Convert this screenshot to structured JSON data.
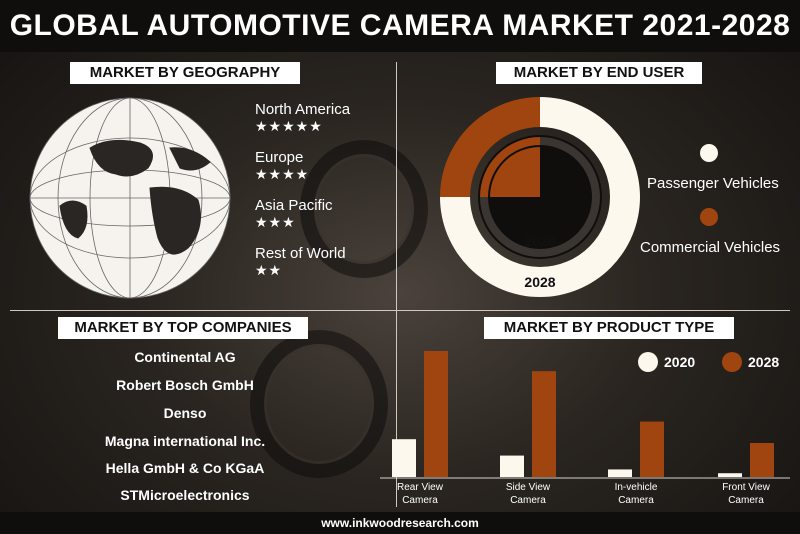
{
  "title": "GLOBAL AUTOMOTIVE CAMERA MARKET 2021-2028",
  "footer": "www.inkwoodresearch.com",
  "colors": {
    "accent": "#a0450f",
    "light": "#fcf8ed",
    "dark": "#100e0d"
  },
  "geography": {
    "heading": "MARKET BY GEOGRAPHY",
    "icon": "globe-icon",
    "regions": [
      {
        "name": "North America",
        "stars": "★★★★★",
        "rating": 5
      },
      {
        "name": "Europe",
        "stars": "★★★★",
        "rating": 4
      },
      {
        "name": "Asia Pacific",
        "stars": "★★★",
        "rating": 3
      },
      {
        "name": "Rest of World",
        "stars": "★★",
        "rating": 2
      }
    ]
  },
  "end_user": {
    "heading": "MARKET BY END USER",
    "legend": [
      "Passenger Vehicles",
      "Commercial Vehicles"
    ]
  },
  "companies": {
    "heading": "MARKET BY TOP COMPANIES",
    "list": [
      "Continental AG",
      "Robert Bosch GmbH",
      "Denso",
      "Magna international Inc.",
      "Hella GmbH & Co KGaA",
      "STMicroelectronics"
    ]
  },
  "product": {
    "heading": "MARKET BY PRODUCT  TYPE"
  },
  "chart_data": [
    {
      "type": "pie",
      "chart": "end_user",
      "rings": [
        "2020",
        "2028"
      ],
      "categories": [
        "Passenger Vehicles",
        "Commercial Vehicles"
      ],
      "series": [
        {
          "name": "2020",
          "values": [
            75,
            25
          ]
        },
        {
          "name": "2028",
          "values": [
            75,
            25
          ]
        }
      ]
    },
    {
      "type": "bar",
      "chart": "product_type",
      "categories": [
        "Rear View Camera",
        "Side View Camera",
        "In-vehicle Camera",
        "Front View Camera"
      ],
      "category_lines": [
        [
          "Rear View",
          "Camera"
        ],
        [
          "Side View",
          "Camera"
        ],
        [
          "In-vehicle",
          "Camera"
        ],
        [
          "Front View",
          "Camera"
        ]
      ],
      "series": [
        {
          "name": "2020",
          "values": [
            30,
            17,
            6,
            3
          ]
        },
        {
          "name": "2028",
          "values": [
            100,
            84,
            44,
            27
          ]
        }
      ],
      "ylim": [
        0,
        100
      ],
      "grid": false,
      "legend": "top-right"
    }
  ]
}
